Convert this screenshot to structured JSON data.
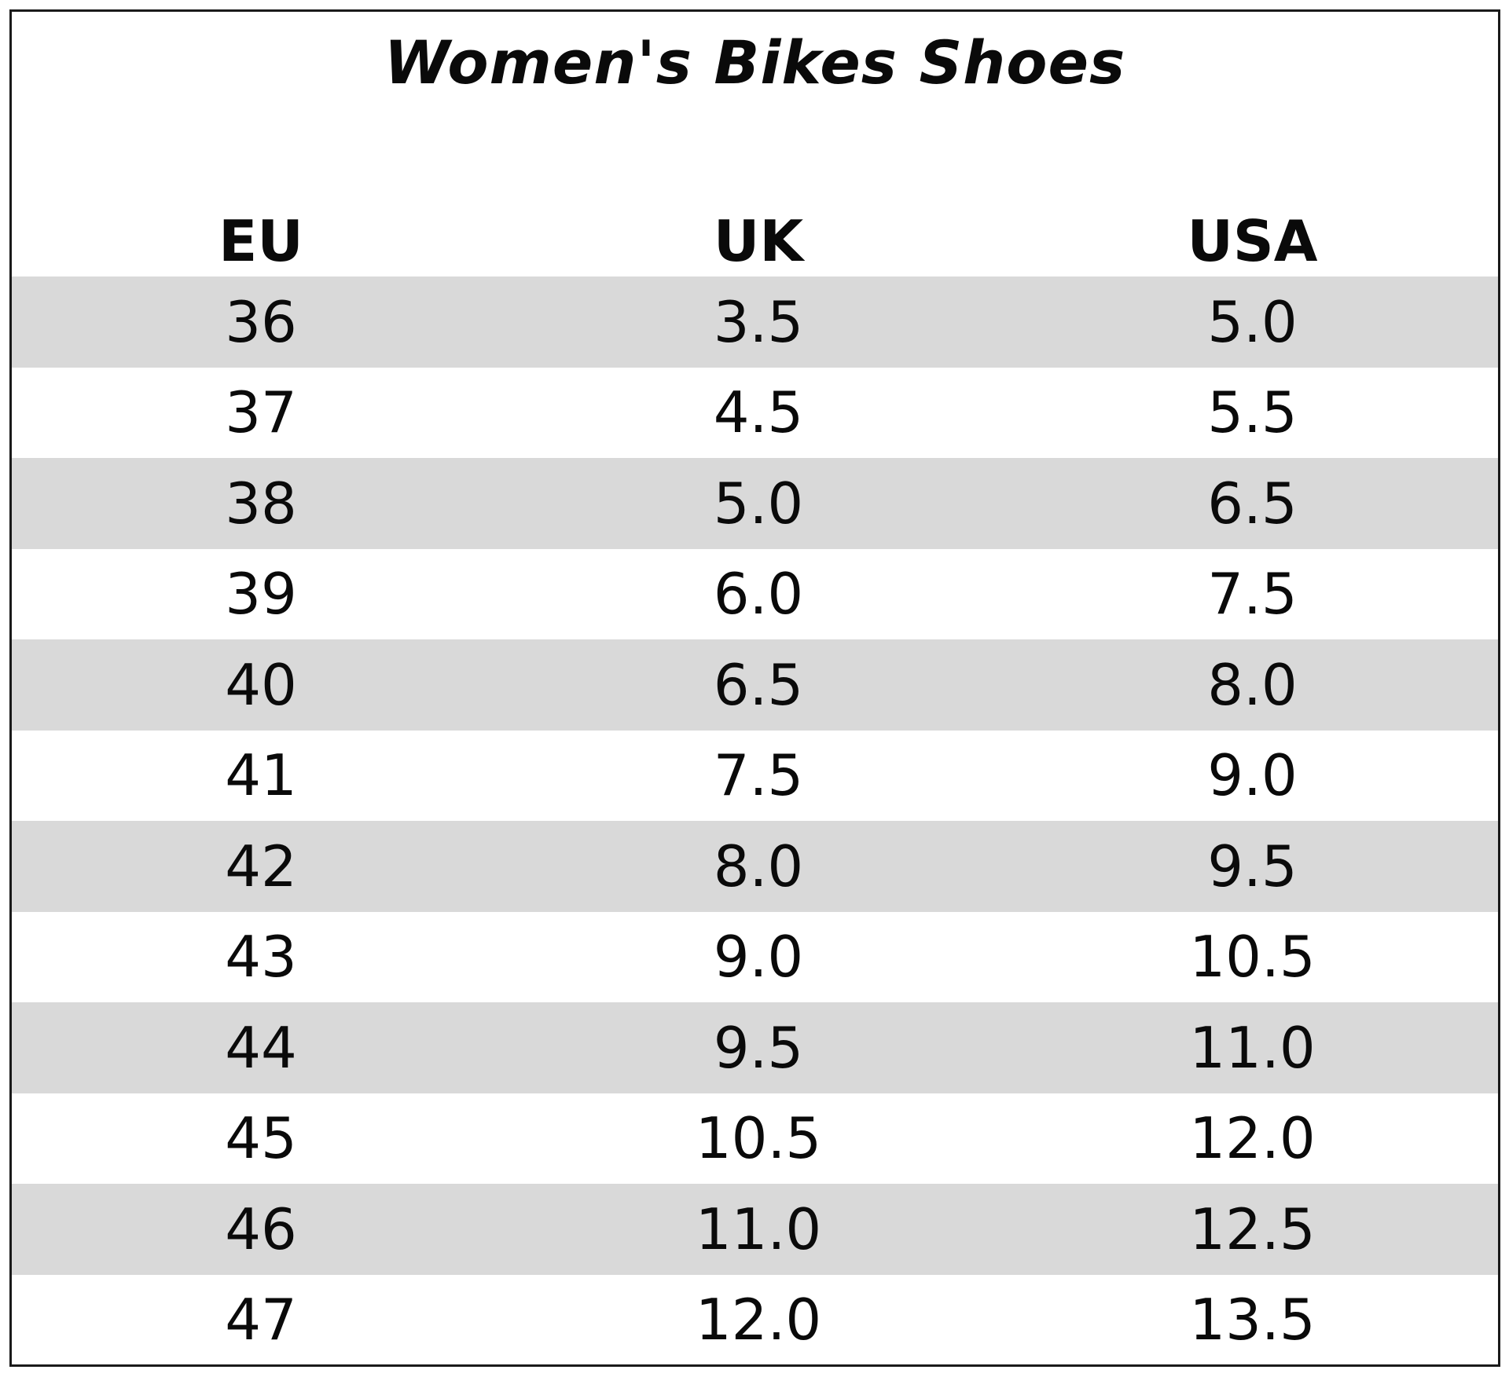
{
  "title": "Women's Bikes Shoes",
  "headers": [
    "EU",
    "UK",
    "USA"
  ],
  "rows": [
    [
      "36",
      "3.5",
      "5.0"
    ],
    [
      "37",
      "4.5",
      "5.5"
    ],
    [
      "38",
      "5.0",
      "6.5"
    ],
    [
      "39",
      "6.0",
      "7.5"
    ],
    [
      "40",
      "6.5",
      "8.0"
    ],
    [
      "41",
      "7.5",
      "9.0"
    ],
    [
      "42",
      "8.0",
      "9.5"
    ],
    [
      "43",
      "9.0",
      "10.5"
    ],
    [
      "44",
      "9.5",
      "11.0"
    ],
    [
      "45",
      "10.5",
      "12.0"
    ],
    [
      "46",
      "11.0",
      "12.5"
    ],
    [
      "47",
      "12.0",
      "13.5"
    ]
  ],
  "colors": {
    "shaded_row": "#d9d9d9",
    "border": "#1a1a1a",
    "text": "#0a0a0a"
  }
}
